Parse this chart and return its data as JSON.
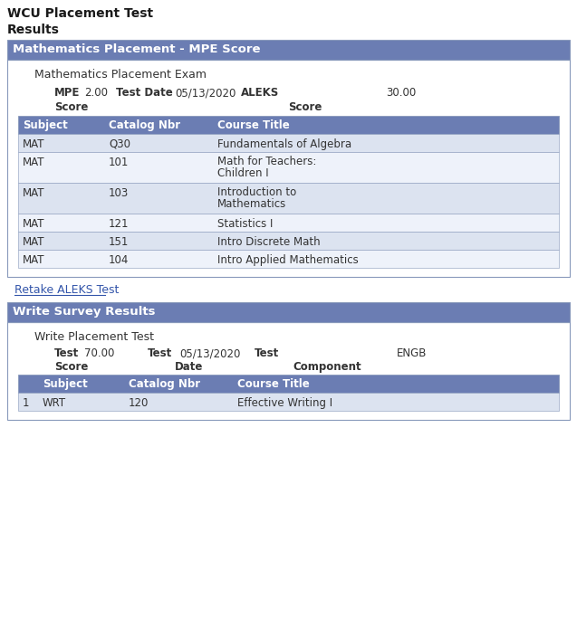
{
  "title_line1": "WCU Placement Test",
  "title_line2": "Results",
  "section1_header": "Mathematics Placement - MPE Score",
  "section1_subheader": "Mathematics Placement Exam",
  "mpe_label": "MPE",
  "mpe_value": "2.00",
  "test_date_label": "Test Date",
  "test_date_value": "05/13/2020",
  "aleks_label": "ALEKS",
  "aleks_value": "30.00",
  "score_label_left": "Score",
  "score_label_right": "Score",
  "table1_headers": [
    "Subject",
    "Catalog Nbr",
    "Course Title"
  ],
  "table1_rows": [
    [
      "MAT",
      "Q30",
      "Fundamentals of Algebra"
    ],
    [
      "MAT",
      "101",
      "Math for Teachers:\nChildren I"
    ],
    [
      "MAT",
      "103",
      "Introduction to\nMathematics"
    ],
    [
      "MAT",
      "121",
      "Statistics I"
    ],
    [
      "MAT",
      "151",
      "Intro Discrete Math"
    ],
    [
      "MAT",
      "104",
      "Intro Applied Mathematics"
    ]
  ],
  "link_text": "Retake ALEKS Test",
  "section2_header": "Write Survey Results",
  "section2_subheader": "Write Placement Test",
  "write_test_label": "Test",
  "write_test_value": "70.00",
  "write_date_label": "Test",
  "write_date_value": "05/13/2020",
  "write_component_label": "Test",
  "write_component_value": "ENGB",
  "write_score_label": "Score",
  "write_date_display": "Date",
  "write_component_display": "Component",
  "table2_headers": [
    "",
    "Subject",
    "Catalog Nbr",
    "Course Title"
  ],
  "table2_rows": [
    [
      "1",
      "WRT",
      "120",
      "Effective Writing I"
    ]
  ],
  "header_bg_color": "#6b7db3",
  "header_text_color": "#ffffff",
  "row_odd_color": "#dce3f0",
  "row_even_color": "#eef2fa",
  "border_color": "#aaaacc",
  "link_color": "#3355aa",
  "title_color": "#222222",
  "body_bg": "#ffffff",
  "outer_bg": "#ffffff",
  "table_border_color": "#8899bb"
}
